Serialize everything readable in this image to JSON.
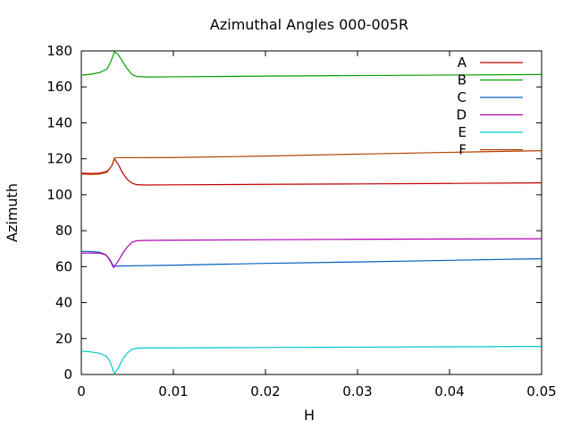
{
  "chart_data": {
    "type": "line",
    "title": "Azimuthal Angles 000-005R",
    "xlabel": "H",
    "ylabel": "Azimuth",
    "xlim": [
      0,
      0.05
    ],
    "ylim": [
      0,
      180
    ],
    "x_ticks": [
      0,
      0.01,
      0.02,
      0.03,
      0.04,
      0.05
    ],
    "x_tick_labels": [
      "0",
      "0.01",
      "0.02",
      "0.03",
      "0.04",
      "0.05"
    ],
    "y_ticks": [
      0,
      20,
      40,
      60,
      80,
      100,
      120,
      140,
      160,
      180
    ],
    "y_tick_labels": [
      "0",
      "20",
      "40",
      "60",
      "80",
      "100",
      "120",
      "140",
      "160",
      "180"
    ],
    "grid": false,
    "legend_position": "top-right",
    "series": [
      {
        "name": "A",
        "color": "#c00000",
        "points": [
          [
            0,
            112
          ],
          [
            0.001,
            111.8
          ],
          [
            0.002,
            112
          ],
          [
            0.0028,
            113
          ],
          [
            0.0033,
            116
          ],
          [
            0.0036,
            120
          ],
          [
            0.004,
            117
          ],
          [
            0.0045,
            112
          ],
          [
            0.005,
            108.5
          ],
          [
            0.0055,
            106.5
          ],
          [
            0.006,
            105.6
          ],
          [
            0.007,
            105.4
          ],
          [
            0.01,
            105.5
          ],
          [
            0.02,
            105.8
          ],
          [
            0.03,
            106
          ],
          [
            0.04,
            106.3
          ],
          [
            0.05,
            106.6
          ]
        ]
      },
      {
        "name": "B",
        "color": "#00a000",
        "points": [
          [
            0,
            166.5
          ],
          [
            0.001,
            167
          ],
          [
            0.002,
            168
          ],
          [
            0.0028,
            170
          ],
          [
            0.0032,
            174
          ],
          [
            0.0036,
            179.5
          ],
          [
            0.004,
            178
          ],
          [
            0.0045,
            174
          ],
          [
            0.005,
            170
          ],
          [
            0.0055,
            167
          ],
          [
            0.006,
            165.8
          ],
          [
            0.007,
            165.5
          ],
          [
            0.01,
            165.6
          ],
          [
            0.02,
            166
          ],
          [
            0.03,
            166.3
          ],
          [
            0.04,
            166.6
          ],
          [
            0.05,
            166.9
          ]
        ]
      },
      {
        "name": "C",
        "color": "#0060c0",
        "points": [
          [
            0,
            68.5
          ],
          [
            0.001,
            68.4
          ],
          [
            0.002,
            68
          ],
          [
            0.0027,
            66.5
          ],
          [
            0.0031,
            64
          ],
          [
            0.0034,
            61
          ],
          [
            0.0036,
            60.2
          ],
          [
            0.004,
            60.3
          ],
          [
            0.005,
            60.4
          ],
          [
            0.006,
            60.5
          ],
          [
            0.01,
            60.8
          ],
          [
            0.02,
            61.8
          ],
          [
            0.03,
            62.6
          ],
          [
            0.04,
            63.5
          ],
          [
            0.05,
            64.4
          ]
        ]
      },
      {
        "name": "D",
        "color": "#b000b0",
        "points": [
          [
            0,
            67.5
          ],
          [
            0.001,
            67.6
          ],
          [
            0.002,
            67.5
          ],
          [
            0.0027,
            66.5
          ],
          [
            0.0031,
            63.5
          ],
          [
            0.0035,
            59.5
          ],
          [
            0.004,
            63
          ],
          [
            0.0045,
            67.5
          ],
          [
            0.005,
            71
          ],
          [
            0.0055,
            73.5
          ],
          [
            0.006,
            74.4
          ],
          [
            0.007,
            74.6
          ],
          [
            0.01,
            74.7
          ],
          [
            0.02,
            75
          ],
          [
            0.03,
            75.2
          ],
          [
            0.04,
            75.4
          ],
          [
            0.05,
            75.5
          ]
        ]
      },
      {
        "name": "E",
        "color": "#00c8c8",
        "points": [
          [
            0,
            13
          ],
          [
            0.001,
            12.6
          ],
          [
            0.002,
            11.8
          ],
          [
            0.0027,
            10.2
          ],
          [
            0.0031,
            7.5
          ],
          [
            0.0034,
            3
          ],
          [
            0.0036,
            0.3
          ],
          [
            0.004,
            3.5
          ],
          [
            0.0045,
            8.5
          ],
          [
            0.005,
            12
          ],
          [
            0.0055,
            14
          ],
          [
            0.006,
            14.6
          ],
          [
            0.007,
            14.8
          ],
          [
            0.01,
            14.8
          ],
          [
            0.02,
            15
          ],
          [
            0.03,
            15.2
          ],
          [
            0.04,
            15.4
          ],
          [
            0.05,
            15.6
          ]
        ]
      },
      {
        "name": "F",
        "color": "#b04000",
        "points": [
          [
            0,
            111.5
          ],
          [
            0.001,
            111.3
          ],
          [
            0.002,
            111.5
          ],
          [
            0.0028,
            112.5
          ],
          [
            0.0033,
            116
          ],
          [
            0.0036,
            120.5
          ],
          [
            0.004,
            120.6
          ],
          [
            0.005,
            120.6
          ],
          [
            0.01,
            120.7
          ],
          [
            0.02,
            121.5
          ],
          [
            0.03,
            122.6
          ],
          [
            0.04,
            123.6
          ],
          [
            0.05,
            124.5
          ]
        ]
      }
    ]
  }
}
